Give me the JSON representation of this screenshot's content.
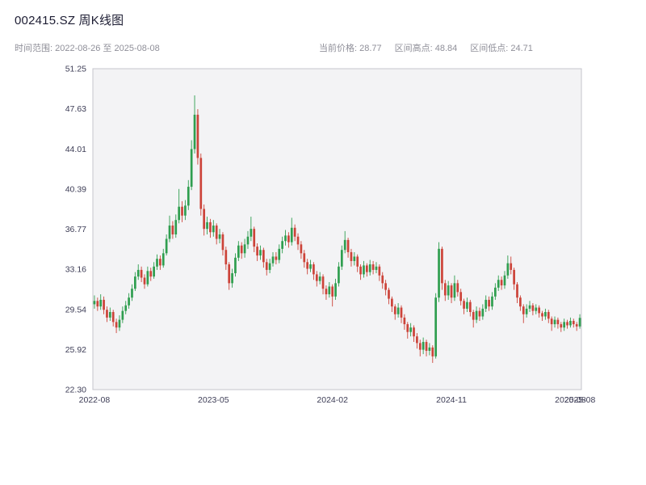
{
  "header": {
    "title": "002415.SZ 周K线图",
    "range_label": "时间范围: 2022-08-26 至 2025-08-08",
    "price_label": "当前价格: 28.77",
    "high_label": "区间高点: 48.84",
    "low_label": "区间低点: 24.71"
  },
  "chart_data": {
    "type": "candlestick",
    "title": "002415.SZ 周K线图",
    "symbol": "002415.SZ",
    "interval": "weekly",
    "date_range": {
      "start": "2022-08-26",
      "end": "2025-08-08"
    },
    "current_price": 28.77,
    "range_high": 48.84,
    "range_low": 24.71,
    "ylim": [
      22.3,
      51.25
    ],
    "y_ticks": [
      "51.25",
      "47.63",
      "44.01",
      "40.39",
      "36.77",
      "33.16",
      "29.54",
      "25.92",
      "22.30"
    ],
    "x_ticks": [
      {
        "label": "2022-08",
        "index": 0
      },
      {
        "label": "2023-05",
        "index": 38
      },
      {
        "label": "2024-02",
        "index": 76
      },
      {
        "label": "2024-11",
        "index": 114
      },
      {
        "label": "2025-08",
        "index": 152
      },
      {
        "label": "2025-08",
        "index": 155
      }
    ],
    "grid": false,
    "legend": "none",
    "up_color": "#2f9e4f",
    "down_color": "#cc4339",
    "plot_bg": "#f3f3f5",
    "axis_color": "#c4c4cc",
    "tick_color": "#3d3d56",
    "candles": [
      [
        30.0,
        30.8,
        29.6,
        30.3
      ],
      [
        30.3,
        30.6,
        29.4,
        29.8
      ],
      [
        29.8,
        30.9,
        29.5,
        30.4
      ],
      [
        30.4,
        30.7,
        29.1,
        29.5
      ],
      [
        29.5,
        29.8,
        28.4,
        28.8
      ],
      [
        28.8,
        29.7,
        28.5,
        29.3
      ],
      [
        29.3,
        29.5,
        28.0,
        28.4
      ],
      [
        28.4,
        28.7,
        27.4,
        27.9
      ],
      [
        27.9,
        29.0,
        27.6,
        28.6
      ],
      [
        28.6,
        29.8,
        28.3,
        29.4
      ],
      [
        29.4,
        30.3,
        29.1,
        29.9
      ],
      [
        29.9,
        31.0,
        29.6,
        30.6
      ],
      [
        30.6,
        31.8,
        30.3,
        31.4
      ],
      [
        31.4,
        32.9,
        31.2,
        32.5
      ],
      [
        32.5,
        33.6,
        32.2,
        33.1
      ],
      [
        33.1,
        33.4,
        32.0,
        32.4
      ],
      [
        32.4,
        32.7,
        31.4,
        31.8
      ],
      [
        31.8,
        33.4,
        31.6,
        33.0
      ],
      [
        33.0,
        33.3,
        32.1,
        32.5
      ],
      [
        32.5,
        33.8,
        32.3,
        33.4
      ],
      [
        33.4,
        34.5,
        33.1,
        34.1
      ],
      [
        34.1,
        34.4,
        33.1,
        33.5
      ],
      [
        33.5,
        35.0,
        33.3,
        34.6
      ],
      [
        34.6,
        36.3,
        34.4,
        35.9
      ],
      [
        35.9,
        38.0,
        35.6,
        37.1
      ],
      [
        37.1,
        37.5,
        35.9,
        36.3
      ],
      [
        36.3,
        38.1,
        36.0,
        37.6
      ],
      [
        37.6,
        40.4,
        37.3,
        38.8
      ],
      [
        38.8,
        39.3,
        37.4,
        38.0
      ],
      [
        38.0,
        39.4,
        37.6,
        38.9
      ],
      [
        38.9,
        41.2,
        38.5,
        40.6
      ],
      [
        40.6,
        44.8,
        40.3,
        44.0
      ],
      [
        44.0,
        48.84,
        43.6,
        47.1
      ],
      [
        47.1,
        47.6,
        42.6,
        43.2
      ],
      [
        43.2,
        43.6,
        38.0,
        38.6
      ],
      [
        38.6,
        39.0,
        36.2,
        36.8
      ],
      [
        36.8,
        37.9,
        36.3,
        37.4
      ],
      [
        37.4,
        37.7,
        36.0,
        36.5
      ],
      [
        36.5,
        37.6,
        36.1,
        37.1
      ],
      [
        37.1,
        37.3,
        35.4,
        35.9
      ],
      [
        35.9,
        36.8,
        35.5,
        36.3
      ],
      [
        36.3,
        36.5,
        34.4,
        34.9
      ],
      [
        34.9,
        35.2,
        33.1,
        33.6
      ],
      [
        33.6,
        33.8,
        31.3,
        31.9
      ],
      [
        31.9,
        33.2,
        31.5,
        32.8
      ],
      [
        32.8,
        34.6,
        32.5,
        34.2
      ],
      [
        34.2,
        35.7,
        33.9,
        35.3
      ],
      [
        35.3,
        35.6,
        34.1,
        34.6
      ],
      [
        34.6,
        35.9,
        34.2,
        35.4
      ],
      [
        35.4,
        36.6,
        35.0,
        36.1
      ],
      [
        36.1,
        37.9,
        35.7,
        36.8
      ],
      [
        36.8,
        37.0,
        34.7,
        35.2
      ],
      [
        35.2,
        35.5,
        33.9,
        34.4
      ],
      [
        34.4,
        35.3,
        34.0,
        34.9
      ],
      [
        34.9,
        35.1,
        33.3,
        33.8
      ],
      [
        33.8,
        34.1,
        32.6,
        33.1
      ],
      [
        33.1,
        34.1,
        32.8,
        33.7
      ],
      [
        33.7,
        34.7,
        33.4,
        34.3
      ],
      [
        34.3,
        34.7,
        33.6,
        34.0
      ],
      [
        34.0,
        35.4,
        33.7,
        35.0
      ],
      [
        35.0,
        36.1,
        34.6,
        35.7
      ],
      [
        35.7,
        36.7,
        35.3,
        36.2
      ],
      [
        36.2,
        36.5,
        35.1,
        35.6
      ],
      [
        35.6,
        37.8,
        35.3,
        36.9
      ],
      [
        36.9,
        37.2,
        35.7,
        36.1
      ],
      [
        36.1,
        36.4,
        34.9,
        35.4
      ],
      [
        35.4,
        35.7,
        34.1,
        34.6
      ],
      [
        34.6,
        34.9,
        33.3,
        33.8
      ],
      [
        33.8,
        34.1,
        32.7,
        33.2
      ],
      [
        33.2,
        34.0,
        32.9,
        33.6
      ],
      [
        33.6,
        33.8,
        32.2,
        32.7
      ],
      [
        32.7,
        33.0,
        31.6,
        32.1
      ],
      [
        32.1,
        32.9,
        31.8,
        32.5
      ],
      [
        32.5,
        32.7,
        30.9,
        31.4
      ],
      [
        31.4,
        31.7,
        30.4,
        30.9
      ],
      [
        30.9,
        32.0,
        30.6,
        31.6
      ],
      [
        31.6,
        31.8,
        29.8,
        30.7
      ],
      [
        30.7,
        32.3,
        30.4,
        31.9
      ],
      [
        31.9,
        33.8,
        31.6,
        33.4
      ],
      [
        33.4,
        35.3,
        33.1,
        34.9
      ],
      [
        34.9,
        36.6,
        34.6,
        35.8
      ],
      [
        35.8,
        36.0,
        34.2,
        34.7
      ],
      [
        34.7,
        35.0,
        33.4,
        33.9
      ],
      [
        33.9,
        34.7,
        33.5,
        34.3
      ],
      [
        34.3,
        34.5,
        32.9,
        33.4
      ],
      [
        33.4,
        33.6,
        32.2,
        32.7
      ],
      [
        32.7,
        33.9,
        32.4,
        33.5
      ],
      [
        33.5,
        33.7,
        32.5,
        32.9
      ],
      [
        32.9,
        34.0,
        32.6,
        33.6
      ],
      [
        33.6,
        33.9,
        32.7,
        33.1
      ],
      [
        33.1,
        33.8,
        32.8,
        33.4
      ],
      [
        33.4,
        33.6,
        32.1,
        32.6
      ],
      [
        32.6,
        32.9,
        31.4,
        31.9
      ],
      [
        31.9,
        32.2,
        30.8,
        31.3
      ],
      [
        31.3,
        31.5,
        30.0,
        30.5
      ],
      [
        30.5,
        30.7,
        29.3,
        29.8
      ],
      [
        29.8,
        30.0,
        28.6,
        29.1
      ],
      [
        29.1,
        30.1,
        28.8,
        29.7
      ],
      [
        29.7,
        29.9,
        28.3,
        28.8
      ],
      [
        28.8,
        29.1,
        27.7,
        28.2
      ],
      [
        28.2,
        28.4,
        26.9,
        27.5
      ],
      [
        27.5,
        28.3,
        27.1,
        27.9
      ],
      [
        27.9,
        28.1,
        26.6,
        27.1
      ],
      [
        27.1,
        27.4,
        26.0,
        26.5
      ],
      [
        26.5,
        26.8,
        25.3,
        25.9
      ],
      [
        25.9,
        27.0,
        25.5,
        26.6
      ],
      [
        26.6,
        26.8,
        25.3,
        25.8
      ],
      [
        25.8,
        26.5,
        25.4,
        26.1
      ],
      [
        26.1,
        26.3,
        24.71,
        25.3
      ],
      [
        25.3,
        31.0,
        25.1,
        30.6
      ],
      [
        30.6,
        35.6,
        30.2,
        35.0
      ],
      [
        35.0,
        35.2,
        31.3,
        31.9
      ],
      [
        31.9,
        32.2,
        30.3,
        30.8
      ],
      [
        30.8,
        32.1,
        30.4,
        31.7
      ],
      [
        31.7,
        31.9,
        30.1,
        30.6
      ],
      [
        30.6,
        32.6,
        30.3,
        31.9
      ],
      [
        31.9,
        32.2,
        30.7,
        31.1
      ],
      [
        31.1,
        31.4,
        29.9,
        30.3
      ],
      [
        30.3,
        30.5,
        29.1,
        29.6
      ],
      [
        29.6,
        30.6,
        29.3,
        30.2
      ],
      [
        30.2,
        30.4,
        28.9,
        29.3
      ],
      [
        29.3,
        29.5,
        27.9,
        28.6
      ],
      [
        28.6,
        29.8,
        28.3,
        29.4
      ],
      [
        29.4,
        29.7,
        28.5,
        28.9
      ],
      [
        28.9,
        30.0,
        28.6,
        29.6
      ],
      [
        29.6,
        30.8,
        29.3,
        30.4
      ],
      [
        30.4,
        30.7,
        29.4,
        29.8
      ],
      [
        29.8,
        31.1,
        29.5,
        30.7
      ],
      [
        30.7,
        31.9,
        30.4,
        31.5
      ],
      [
        31.5,
        32.6,
        31.2,
        32.2
      ],
      [
        32.2,
        32.5,
        31.3,
        31.7
      ],
      [
        31.7,
        33.0,
        31.4,
        32.6
      ],
      [
        32.6,
        34.4,
        32.3,
        33.7
      ],
      [
        33.7,
        34.3,
        32.7,
        33.1
      ],
      [
        33.1,
        33.3,
        31.3,
        31.8
      ],
      [
        31.8,
        32.0,
        30.1,
        30.6
      ],
      [
        30.6,
        30.8,
        29.4,
        29.8
      ],
      [
        29.8,
        30.0,
        28.3,
        29.1
      ],
      [
        29.1,
        30.0,
        28.8,
        29.6
      ],
      [
        29.6,
        30.3,
        29.3,
        29.9
      ],
      [
        29.9,
        30.1,
        29.0,
        29.4
      ],
      [
        29.4,
        30.0,
        29.1,
        29.7
      ],
      [
        29.7,
        29.9,
        28.8,
        29.2
      ],
      [
        29.2,
        29.4,
        28.5,
        28.9
      ],
      [
        28.9,
        29.6,
        28.6,
        29.3
      ],
      [
        29.3,
        29.5,
        28.3,
        28.7
      ],
      [
        28.7,
        28.9,
        27.6,
        28.2
      ],
      [
        28.2,
        28.9,
        27.9,
        28.6
      ],
      [
        28.6,
        28.8,
        27.8,
        28.2
      ],
      [
        28.2,
        28.4,
        27.5,
        27.9
      ],
      [
        27.9,
        28.7,
        27.6,
        28.4
      ],
      [
        28.4,
        28.6,
        27.8,
        28.1
      ],
      [
        28.1,
        28.8,
        27.9,
        28.5
      ],
      [
        28.5,
        28.7,
        27.9,
        28.2
      ],
      [
        28.2,
        28.4,
        27.6,
        28.0
      ],
      [
        28.0,
        29.1,
        27.8,
        28.77
      ]
    ]
  }
}
